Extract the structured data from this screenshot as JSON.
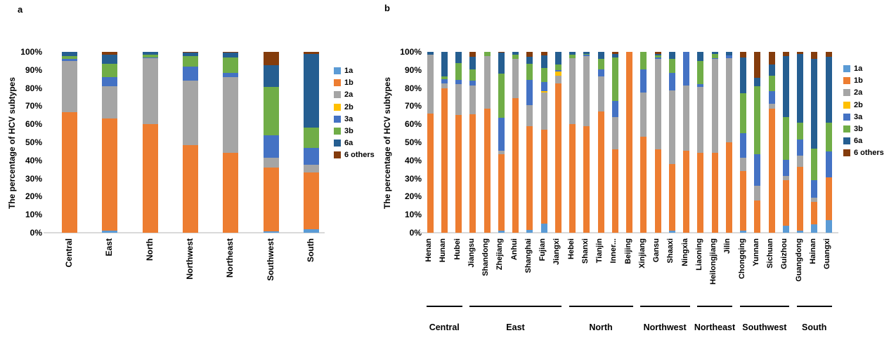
{
  "panel_a": {
    "label": "a",
    "y_axis_title": "The percentage of HCV subtypes"
  },
  "panel_b": {
    "label": "b",
    "y_axis_title": "The percentage of HCV subtypes"
  },
  "legend_labels": [
    "1a",
    "1b",
    "2a",
    "2b",
    "3a",
    "3b",
    "6a",
    "6 others"
  ],
  "colors": {
    "1a": "#5B9BD5",
    "1b": "#ED7D31",
    "2a": "#A5A5A5",
    "2b": "#FFC000",
    "3a": "#4472C4",
    "3b": "#70AD47",
    "6a": "#255E91",
    "6_others": "#843C0C"
  },
  "chart_data": [
    {
      "type": "bar",
      "stacked": true,
      "title": "a",
      "ylabel": "The percentage of HCV subtypes",
      "ylim": [
        0,
        100
      ],
      "yticks": [
        "0%",
        "10%",
        "20%",
        "30%",
        "40%",
        "50%",
        "60%",
        "70%",
        "80%",
        "90%",
        "100%"
      ],
      "legend_position": "right",
      "grid": false,
      "categories": [
        "Central",
        "East",
        "North",
        "Northwest",
        "Northeast",
        "Southwest",
        "South"
      ],
      "series": [
        {
          "name": "1a",
          "color": "#5B9BD5",
          "values": [
            0,
            1,
            0,
            0,
            0,
            0.7,
            2
          ]
        },
        {
          "name": "1b",
          "color": "#ED7D31",
          "values": [
            66.5,
            62,
            60,
            48.5,
            44,
            35.3,
            31.5
          ]
        },
        {
          "name": "2a",
          "color": "#A5A5A5",
          "values": [
            28.5,
            18,
            36.5,
            35.5,
            42,
            5.5,
            4
          ]
        },
        {
          "name": "2b",
          "color": "#FFC000",
          "values": [
            0,
            0,
            0,
            0,
            0,
            0,
            0
          ]
        },
        {
          "name": "3a",
          "color": "#4472C4",
          "values": [
            1,
            5,
            0.5,
            8,
            2.5,
            12.5,
            9.5
          ]
        },
        {
          "name": "3b",
          "color": "#70AD47",
          "values": [
            1.5,
            7.5,
            1.5,
            5.5,
            8.5,
            26.5,
            11
          ]
        },
        {
          "name": "6a",
          "color": "#255E91",
          "values": [
            2.5,
            5,
            1.5,
            2,
            2.5,
            12,
            41
          ]
        },
        {
          "name": "6 others",
          "color": "#843C0C",
          "values": [
            0,
            1.5,
            0,
            0.5,
            0.5,
            7.5,
            1
          ]
        }
      ]
    },
    {
      "type": "bar",
      "stacked": true,
      "title": "b",
      "ylabel": "The percentage of HCV subtypes",
      "ylim": [
        0,
        100
      ],
      "yticks": [
        "0%",
        "10%",
        "20%",
        "30%",
        "40%",
        "50%",
        "60%",
        "70%",
        "80%",
        "90%",
        "100%"
      ],
      "legend_position": "right",
      "grid": false,
      "categories": [
        "Henan",
        "Hunan",
        "Hubei",
        "Jiangsu",
        "Shandong",
        "Zhejiang",
        "Anhui",
        "Shanghai",
        "Fujian",
        "Jiangxi",
        "Hebei",
        "Shanxi",
        "Tianjin",
        "Inner...",
        "Beijing",
        "Xinjiang",
        "Gansu",
        "Shaaxi",
        "Ningxia",
        "Liaoning",
        "Heilongjiang",
        "Jilin",
        "Chongqing",
        "Yunnan",
        "Sichuan",
        "Guizhou",
        "Guangdong",
        "Hainan",
        "Guangxi"
      ],
      "groups": [
        {
          "label": "Central",
          "span": [
            0,
            2
          ]
        },
        {
          "label": "East",
          "span": [
            3,
            9
          ]
        },
        {
          "label": "North",
          "span": [
            10,
            14
          ]
        },
        {
          "label": "Northwest",
          "span": [
            15,
            18
          ]
        },
        {
          "label": "Northeast",
          "span": [
            19,
            21
          ]
        },
        {
          "label": "Southwest",
          "span": [
            22,
            25
          ]
        },
        {
          "label": "South",
          "span": [
            26,
            28
          ]
        }
      ],
      "series": [
        {
          "name": "1a",
          "color": "#5B9BD5",
          "values": [
            0,
            0,
            0,
            0,
            0,
            1,
            0,
            1.5,
            5,
            0,
            0,
            0,
            0,
            0,
            0,
            0,
            0,
            1,
            0,
            0,
            0,
            0,
            1,
            0,
            0,
            4,
            1,
            4.5,
            7
          ]
        },
        {
          "name": "1b",
          "color": "#ED7D31",
          "values": [
            66,
            80,
            65,
            65.5,
            68.5,
            42.5,
            74.5,
            57.5,
            52,
            82.5,
            60,
            59,
            67,
            46,
            100,
            53,
            46,
            37,
            45.5,
            44,
            44,
            50,
            33,
            18,
            68.5,
            25,
            35.5,
            12.5,
            23.5
          ]
        },
        {
          "name": "2a",
          "color": "#A5A5A5",
          "values": [
            32.5,
            2.5,
            17,
            16,
            29,
            2,
            21.5,
            11.5,
            20.5,
            4.5,
            36.5,
            38.5,
            19.5,
            18,
            0,
            24.5,
            50,
            40.5,
            36,
            36.5,
            52,
            46.5,
            7.5,
            8,
            3,
            2.5,
            6,
            2.5,
            0
          ]
        },
        {
          "name": "2b",
          "color": "#FFC000",
          "values": [
            0,
            0,
            0,
            0,
            0,
            0,
            0,
            0,
            1,
            2,
            0,
            0,
            0,
            0,
            0,
            0,
            0,
            0,
            0,
            0,
            0,
            0,
            0,
            0,
            0,
            0,
            0,
            0,
            0
          ]
        },
        {
          "name": "3a",
          "color": "#4472C4",
          "values": [
            0,
            2.5,
            2.5,
            2.5,
            0,
            18,
            0,
            14,
            5,
            1,
            0,
            1,
            4,
            9,
            0,
            13,
            1,
            10,
            18.5,
            1.5,
            0.5,
            1.5,
            13.5,
            17.5,
            7,
            9,
            9,
            9.5,
            14.5
          ]
        },
        {
          "name": "3b",
          "color": "#70AD47",
          "values": [
            0,
            1.5,
            9.5,
            6.5,
            2.5,
            24.5,
            2.5,
            9,
            7.5,
            3,
            2,
            0.5,
            5.5,
            24,
            0,
            9.5,
            1,
            7.5,
            0,
            13,
            2.5,
            0,
            22,
            37.5,
            8.5,
            23.5,
            9.5,
            17.5,
            16
          ]
        },
        {
          "name": "6a",
          "color": "#255E91",
          "values": [
            1.5,
            13.5,
            6,
            7,
            0,
            11.5,
            1.5,
            4,
            7,
            7,
            1.5,
            1,
            4,
            2,
            0,
            0,
            1,
            4,
            0,
            5,
            1,
            2,
            20,
            4.5,
            6,
            33.5,
            38,
            49.5,
            36.5
          ]
        },
        {
          "name": "6 others",
          "color": "#843C0C",
          "values": [
            0,
            0,
            0,
            2.5,
            0,
            0.5,
            0,
            2.5,
            2,
            0,
            0,
            0,
            0,
            1,
            0,
            0,
            1,
            0,
            0,
            0,
            0,
            0,
            3,
            14.5,
            7,
            2.5,
            1,
            4,
            2.5
          ]
        }
      ]
    }
  ]
}
